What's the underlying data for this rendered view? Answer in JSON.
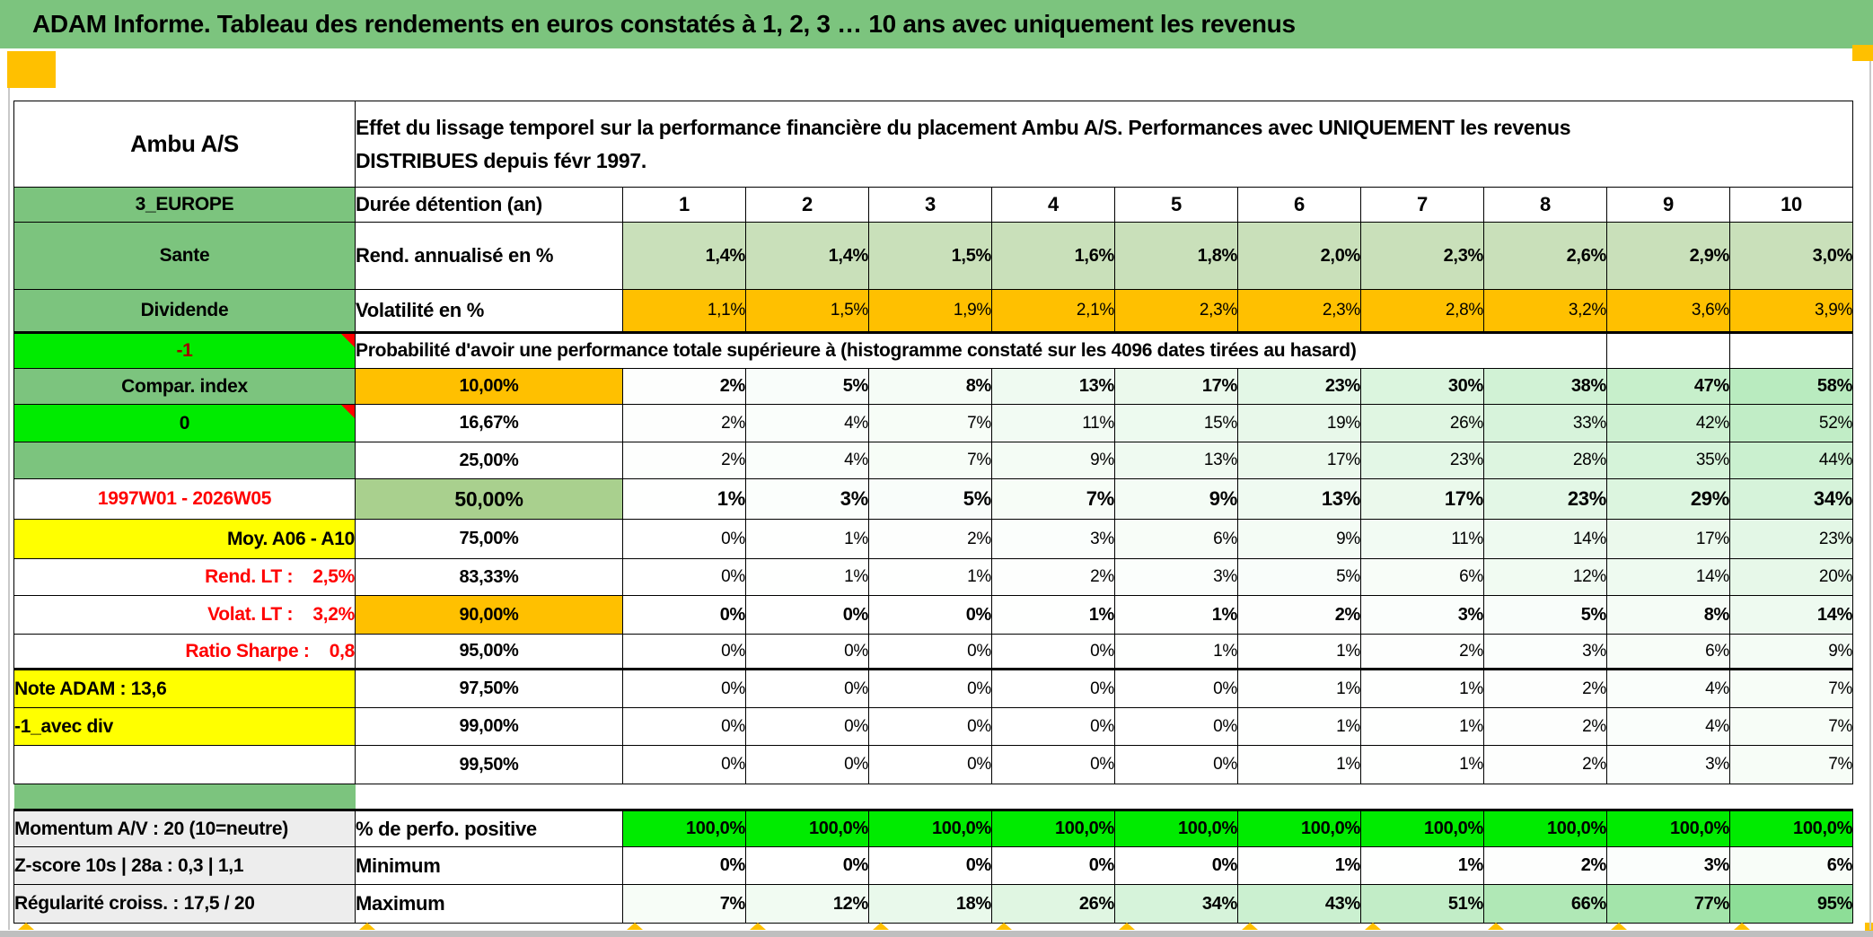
{
  "title": "ADAM Informe. Tableau des rendements en euros constatés à 1, 2, 3 … 10 ans avec uniquement les revenus",
  "header": {
    "asset_name": "Ambu A/S",
    "description": "Effet du lissage temporel sur la performance financière du placement Ambu A/S. Performances avec UNIQUEMENT les revenus\nDISTRIBUES depuis févr 1997."
  },
  "colors": {
    "title_green": "#7CC47E",
    "header_green": "#7CC47E",
    "light_green": "#C9E0BA",
    "orange": "#FFC000",
    "bright_green": "#00EB00",
    "yellow": "#FFFF00",
    "mid_green_50": "#A9D08E",
    "gray_label": "#EDEDED",
    "red_text": "#FF0000",
    "dark_red_text": "#A00000",
    "comment_marker_red": "#FF0000"
  },
  "table": {
    "rows": [
      {
        "id": "duration",
        "left": {
          "text": "3_EUROPE",
          "bg": "header_green"
        },
        "mid": {
          "text": "Durée détention (an)",
          "align": "left"
        },
        "cells": {
          "values": [
            "1",
            "2",
            "3",
            "4",
            "5",
            "6",
            "7",
            "8",
            "9",
            "10"
          ],
          "cls": "head-num"
        }
      },
      {
        "id": "annualized",
        "left": {
          "text": "Sante",
          "bg": "header_green"
        },
        "mid": {
          "text": "Rend. annualisé en %",
          "align": "left"
        },
        "cells": {
          "values": [
            "1,4%",
            "1,4%",
            "1,5%",
            "1,6%",
            "1,8%",
            "2,0%",
            "2,3%",
            "2,6%",
            "2,9%",
            "3,0%"
          ],
          "bg": "light_green",
          "bold": true
        }
      },
      {
        "id": "volatility",
        "thick_bottom": true,
        "left": {
          "text": "Dividende",
          "bg": "header_green"
        },
        "mid": {
          "text": "Volatilité en %",
          "align": "left"
        },
        "cells": {
          "values": [
            "1,1%",
            "1,5%",
            "1,9%",
            "2,1%",
            "2,3%",
            "2,3%",
            "2,8%",
            "3,2%",
            "3,6%",
            "3,9%"
          ],
          "bg": "orange"
        }
      },
      {
        "id": "prob-header",
        "left": {
          "text": "-1",
          "bg": "bright_green",
          "color": "dark_red_text",
          "marker": true
        },
        "span_text": "Probabilité d'avoir une performance totale supérieure à (histogramme constaté sur les 4096 dates tirées au hasard)",
        "trailing_cells": 2
      },
      {
        "id": "p10",
        "left": {
          "text": "Compar. index",
          "bg": "header_green"
        },
        "mid": {
          "text": "10,00%",
          "bg": "orange"
        },
        "cells": {
          "values": [
            "2%",
            "5%",
            "8%",
            "13%",
            "17%",
            "23%",
            "30%",
            "38%",
            "47%",
            "58%"
          ],
          "tint": true,
          "bold": true
        }
      },
      {
        "id": "p16",
        "left": {
          "text": "0",
          "bg": "bright_green",
          "marker": true
        },
        "mid": {
          "text": "16,67%"
        },
        "cells": {
          "values": [
            "2%",
            "4%",
            "7%",
            "11%",
            "15%",
            "19%",
            "26%",
            "33%",
            "42%",
            "52%"
          ],
          "tint": true
        }
      },
      {
        "id": "p25",
        "left": {
          "text": "",
          "bg": "header_green"
        },
        "mid": {
          "text": "25,00%"
        },
        "cells": {
          "values": [
            "2%",
            "4%",
            "7%",
            "9%",
            "13%",
            "17%",
            "23%",
            "28%",
            "35%",
            "44%"
          ],
          "tint": true
        }
      },
      {
        "id": "p50",
        "left": {
          "text": "1997W01 - 2026W05",
          "color": "red_text"
        },
        "mid": {
          "text": "50,00%",
          "bg": "mid_green_50",
          "big": true
        },
        "cells": {
          "values": [
            "1%",
            "3%",
            "5%",
            "7%",
            "9%",
            "13%",
            "17%",
            "23%",
            "29%",
            "34%"
          ],
          "tint": true,
          "bold": true,
          "big": true
        }
      },
      {
        "id": "p75",
        "left": {
          "text": "Moy. A06 - A10",
          "bg": "yellow",
          "align": "right"
        },
        "mid": {
          "text": "75,00%"
        },
        "cells": {
          "values": [
            "0%",
            "1%",
            "2%",
            "3%",
            "6%",
            "9%",
            "11%",
            "14%",
            "17%",
            "23%"
          ],
          "tint": true
        }
      },
      {
        "id": "p83",
        "left": {
          "text": "Rend. LT :    2,5%",
          "color": "red_text",
          "align": "right"
        },
        "mid": {
          "text": "83,33%"
        },
        "cells": {
          "values": [
            "0%",
            "1%",
            "1%",
            "2%",
            "3%",
            "5%",
            "6%",
            "12%",
            "14%",
            "20%"
          ],
          "tint": true
        }
      },
      {
        "id": "p90",
        "left": {
          "text": "Volat. LT :    3,2%",
          "color": "red_text",
          "align": "right"
        },
        "mid": {
          "text": "90,00%",
          "bg": "orange"
        },
        "cells": {
          "values": [
            "0%",
            "0%",
            "0%",
            "1%",
            "1%",
            "2%",
            "3%",
            "5%",
            "8%",
            "14%"
          ],
          "tint": true,
          "bold": true
        }
      },
      {
        "id": "p95",
        "thick_bottom": true,
        "left": {
          "text": "Ratio Sharpe :    0,8",
          "color": "red_text",
          "align": "right"
        },
        "mid": {
          "text": "95,00%"
        },
        "cells": {
          "values": [
            "0%",
            "0%",
            "0%",
            "0%",
            "1%",
            "1%",
            "2%",
            "3%",
            "6%",
            "9%"
          ],
          "tint": true
        }
      },
      {
        "id": "p97",
        "left": {
          "text": "Note ADAM : 13,6",
          "bg": "yellow",
          "align": "left"
        },
        "mid": {
          "text": "97,50%"
        },
        "cells": {
          "values": [
            "0%",
            "0%",
            "0%",
            "0%",
            "0%",
            "1%",
            "1%",
            "2%",
            "4%",
            "7%"
          ],
          "tint": true
        }
      },
      {
        "id": "p99",
        "left": {
          "text": "-1_avec div",
          "bg": "yellow",
          "align": "left"
        },
        "mid": {
          "text": "99,00%"
        },
        "cells": {
          "values": [
            "0%",
            "0%",
            "0%",
            "0%",
            "0%",
            "1%",
            "1%",
            "2%",
            "4%",
            "7%"
          ],
          "tint": true
        }
      },
      {
        "id": "p995",
        "left": {
          "text": ""
        },
        "mid": {
          "text": "99,50%"
        },
        "cells": {
          "values": [
            "0%",
            "0%",
            "0%",
            "0%",
            "0%",
            "1%",
            "1%",
            "2%",
            "3%",
            "7%"
          ],
          "tint": true
        }
      },
      {
        "id": "spacer",
        "type": "spacer",
        "left": {
          "bg": "header_green"
        }
      },
      {
        "id": "positive",
        "thick_top": true,
        "left": {
          "text": "Momentum A/V : 20 (10=neutre)",
          "bg": "gray_label",
          "align": "left"
        },
        "mid": {
          "text": "% de perfo. positive",
          "align": "left"
        },
        "cells": {
          "values": [
            "100,0%",
            "100,0%",
            "100,0%",
            "100,0%",
            "100,0%",
            "100,0%",
            "100,0%",
            "100,0%",
            "100,0%",
            "100,0%"
          ],
          "bg": "bright_green",
          "bold": true
        }
      },
      {
        "id": "minimum",
        "left": {
          "text": "Z-score 10s | 28a : 0,3 | 1,1",
          "bg": "gray_label",
          "align": "left"
        },
        "mid": {
          "text": "Minimum",
          "align": "left"
        },
        "cells": {
          "values": [
            "0%",
            "0%",
            "0%",
            "0%",
            "0%",
            "1%",
            "1%",
            "2%",
            "3%",
            "6%"
          ],
          "tint": true,
          "bold": true
        }
      },
      {
        "id": "maximum",
        "left": {
          "text": "Régularité croiss. : 17,5 / 20",
          "bg": "gray_label",
          "align": "left"
        },
        "mid": {
          "text": "Maximum",
          "align": "left"
        },
        "cells": {
          "values": [
            "7%",
            "12%",
            "18%",
            "26%",
            "34%",
            "43%",
            "51%",
            "66%",
            "77%",
            "95%"
          ],
          "tint": true,
          "bold": true
        }
      }
    ]
  }
}
